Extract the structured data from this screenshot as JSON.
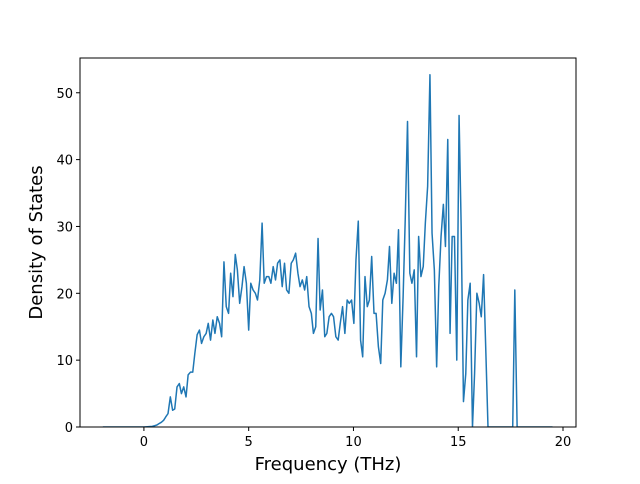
{
  "chart_data": {
    "type": "line",
    "xlabel": "Frequency (THz)",
    "ylabel": "Density of States",
    "color": "#1f77b4",
    "xlim": [
      -3.05,
      20.62
    ],
    "ylim": [
      0,
      55.2
    ],
    "xticks": [
      0,
      5,
      10,
      15,
      20
    ],
    "yticks": [
      0,
      10,
      20,
      30,
      40,
      50
    ],
    "x": [
      -1.96,
      0.0,
      0.4,
      0.51,
      0.62,
      0.72,
      0.83,
      0.94,
      1.04,
      1.15,
      1.26,
      1.37,
      1.47,
      1.58,
      1.69,
      1.79,
      1.9,
      2.01,
      2.11,
      2.22,
      2.33,
      2.43,
      2.54,
      2.65,
      2.75,
      2.86,
      2.97,
      3.07,
      3.18,
      3.29,
      3.39,
      3.5,
      3.61,
      3.71,
      3.82,
      3.93,
      4.04,
      4.14,
      4.25,
      4.36,
      4.46,
      4.57,
      4.68,
      4.78,
      4.89,
      5.0,
      5.1,
      5.21,
      5.32,
      5.42,
      5.53,
      5.64,
      5.74,
      5.85,
      5.96,
      6.06,
      6.17,
      6.28,
      6.38,
      6.49,
      6.6,
      6.71,
      6.81,
      6.92,
      7.03,
      7.13,
      7.24,
      7.35,
      7.45,
      7.56,
      7.67,
      7.77,
      7.88,
      7.99,
      8.09,
      8.2,
      8.31,
      8.41,
      8.52,
      8.63,
      8.73,
      8.84,
      8.95,
      9.05,
      9.16,
      9.27,
      9.37,
      9.48,
      9.59,
      9.7,
      9.8,
      9.91,
      10.02,
      10.12,
      10.23,
      10.34,
      10.44,
      10.55,
      10.66,
      10.76,
      10.87,
      10.98,
      11.08,
      11.19,
      11.3,
      11.4,
      11.51,
      11.62,
      11.72,
      11.83,
      11.94,
      12.05,
      12.15,
      12.26,
      12.37,
      12.47,
      12.58,
      12.69,
      12.79,
      12.9,
      13.01,
      13.11,
      13.22,
      13.33,
      13.43,
      13.54,
      13.65,
      13.75,
      13.86,
      13.97,
      14.07,
      14.18,
      14.29,
      14.39,
      14.5,
      14.61,
      14.71,
      14.82,
      14.93,
      15.04,
      15.14,
      15.25,
      15.36,
      15.46,
      15.57,
      15.68,
      15.78,
      15.89,
      16.0,
      16.1,
      16.21,
      16.32,
      16.42,
      16.53,
      16.64,
      16.74,
      16.85,
      16.96,
      17.06,
      17.17,
      17.28,
      17.38,
      17.49,
      17.6,
      17.7,
      17.81,
      17.9,
      19.5
    ],
    "values": [
      0,
      0,
      0.1,
      0.2,
      0.3,
      0.5,
      0.7,
      1,
      1.5,
      2,
      4.5,
      2.5,
      2.7,
      6,
      6.5,
      5,
      6,
      4.5,
      7.8,
      8.2,
      8.2,
      11,
      13.8,
      14.5,
      12.5,
      13.5,
      14,
      15.5,
      13,
      16,
      14,
      16.5,
      15.5,
      13.5,
      24.7,
      18,
      17,
      23,
      19.5,
      25.8,
      23.5,
      18.5,
      21,
      24,
      21.5,
      14.5,
      21.5,
      20.5,
      20,
      19,
      22,
      30.5,
      21.5,
      22.5,
      22.5,
      21.5,
      24,
      22,
      24.5,
      25,
      21,
      24.5,
      20.5,
      20,
      24.5,
      25,
      26,
      23,
      21,
      22,
      20.5,
      22.5,
      18,
      17,
      14,
      15,
      28.2,
      17.5,
      20.5,
      13.5,
      14,
      16.5,
      17,
      16.5,
      13.5,
      13,
      15.5,
      18,
      14,
      19,
      18.5,
      19,
      15.5,
      25,
      30.8,
      13,
      10.5,
      22.5,
      18,
      19,
      25.5,
      17,
      17,
      12,
      9.5,
      19,
      20,
      22,
      27,
      18.5,
      23,
      21.5,
      29.5,
      9,
      19.5,
      31,
      45.7,
      23,
      21.5,
      23.5,
      10.5,
      28.5,
      22.5,
      24,
      30.5,
      36,
      52.7,
      29,
      23.5,
      9,
      21,
      28.5,
      33.3,
      27,
      43,
      14,
      28.5,
      28.5,
      10,
      46.6,
      30,
      3.8,
      8,
      19,
      21.5,
      0,
      8,
      20,
      18.5,
      16.5,
      22.8,
      11,
      0,
      0,
      0,
      0,
      0,
      0,
      0,
      0,
      0,
      0,
      0,
      0,
      20.5,
      0,
      0,
      0
    ]
  }
}
